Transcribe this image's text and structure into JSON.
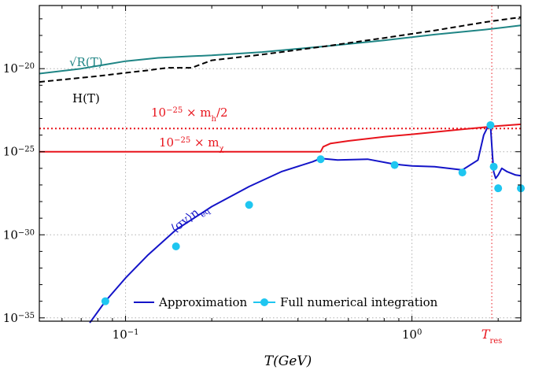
{
  "chart_data": {
    "type": "line",
    "title": "",
    "xlabel": "T(GeV)",
    "ylabel": "",
    "xscale": "log",
    "yscale": "log",
    "xlim": [
      0.05,
      2.4
    ],
    "ylim_exp": [
      -35.2,
      -16.2
    ],
    "grid": true,
    "legend_location": "bottom-center",
    "x_ticks": [
      {
        "value": 0.1,
        "mant": "10",
        "sup": "−1"
      },
      {
        "value": 1,
        "mant": "10",
        "sup": "0"
      }
    ],
    "x_special_tick": {
      "value": 1.9,
      "base": "T",
      "sub": "res"
    },
    "y_ticks": [
      {
        "exp": -20,
        "mant": "10",
        "sup": "−20"
      },
      {
        "exp": -25,
        "mant": "10",
        "sup": "−25"
      },
      {
        "exp": -30,
        "mant": "10",
        "sup": "−30"
      },
      {
        "exp": -35,
        "mant": "10",
        "sup": "−35"
      }
    ],
    "series": [
      {
        "key": "sqrtR",
        "style": "solid",
        "color": "#1f8585",
        "x": [
          0.05,
          0.07,
          0.1,
          0.13,
          0.17,
          0.2,
          0.3,
          0.5,
          0.8,
          1.2,
          1.8,
          2.4
        ],
        "y_exp": [
          -20.3,
          -20.0,
          -19.55,
          -19.35,
          -19.25,
          -19.2,
          -19.0,
          -18.65,
          -18.3,
          -17.95,
          -17.65,
          -17.4
        ]
      },
      {
        "key": "H",
        "style": "dashed",
        "color": "#000000",
        "x": [
          0.05,
          0.08,
          0.1,
          0.12,
          0.14,
          0.17,
          0.2,
          0.3,
          0.5,
          0.8,
          1.2,
          1.8,
          2.4
        ],
        "y_exp": [
          -20.8,
          -20.45,
          -20.25,
          -20.1,
          -19.95,
          -19.95,
          -19.5,
          -19.15,
          -18.65,
          -18.15,
          -17.7,
          -17.2,
          -16.9
        ]
      },
      {
        "key": "mh_half",
        "style": "dotted",
        "color": "#e8141c",
        "x": [
          0.05,
          2.4
        ],
        "y_exp": [
          -23.6,
          -23.6
        ]
      },
      {
        "key": "mchi",
        "style": "solid",
        "color": "#e8141c",
        "x": [
          0.05,
          0.48,
          0.49,
          0.52,
          0.6,
          0.8,
          1.0,
          1.5,
          2.0,
          2.4
        ],
        "y_exp": [
          -25.0,
          -25.0,
          -24.7,
          -24.5,
          -24.35,
          -24.1,
          -23.95,
          -23.65,
          -23.45,
          -23.35
        ]
      },
      {
        "key": "approx",
        "name": "Approximation",
        "style": "solid",
        "color": "#1414c8",
        "x": [
          0.075,
          0.085,
          0.1,
          0.12,
          0.15,
          0.2,
          0.27,
          0.35,
          0.45,
          0.48,
          0.55,
          0.7,
          0.87,
          1.0,
          1.2,
          1.5,
          1.7,
          1.78,
          1.84,
          1.88,
          1.91,
          1.93,
          1.96,
          2.0,
          2.06,
          2.15,
          2.3,
          2.4
        ],
        "y_exp": [
          -35.3,
          -34.0,
          -32.6,
          -31.2,
          -29.7,
          -28.3,
          -27.1,
          -26.2,
          -25.6,
          -25.4,
          -25.5,
          -25.45,
          -25.75,
          -25.85,
          -25.9,
          -26.1,
          -25.5,
          -24.0,
          -23.5,
          -23.4,
          -25.2,
          -26.2,
          -26.6,
          -26.4,
          -26.0,
          -26.2,
          -26.4,
          -26.45
        ]
      }
    ],
    "points": {
      "key": "full",
      "name": "Full numerical integration",
      "color": "#1fc6f0",
      "x": [
        0.085,
        0.15,
        0.27,
        0.48,
        0.87,
        1.5,
        1.88,
        1.93,
        2.0,
        2.4
      ],
      "y_exp": [
        -34.0,
        -30.7,
        -28.2,
        -25.45,
        -25.8,
        -26.25,
        -23.4,
        -25.9,
        -27.2,
        -27.2
      ]
    },
    "annotations": {
      "sqrtR": {
        "text": "√R(T)",
        "color": "#1f8585"
      },
      "H": {
        "text": "H(T)",
        "color": "#000000"
      },
      "mh": {
        "pre": "10",
        "sup": "−25",
        "mid": " × m",
        "sub": "h",
        "post": "/2",
        "color": "#e8141c"
      },
      "mchi": {
        "pre": "10",
        "sup": "−25",
        "mid": " × m",
        "sub": "χ",
        "post": "",
        "color": "#e8141c"
      },
      "sigma": {
        "text": "⟨σv⟩n",
        "sub": "eq",
        "color": "#1414c8"
      }
    },
    "legend": [
      {
        "label": "Approximation",
        "marker": false,
        "color": "#1414c8"
      },
      {
        "label": "Full numerical integration",
        "marker": true,
        "color": "#1fc6f0"
      }
    ]
  }
}
